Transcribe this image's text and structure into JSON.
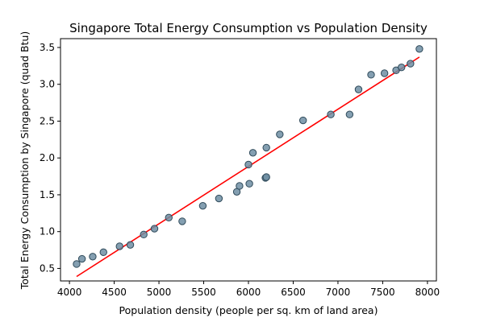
{
  "chart_data": {
    "type": "scatter",
    "title": "Singapore Total Energy Consumption vs Population Density",
    "xlabel": "Population density (people per sq. km of land area)",
    "ylabel": "Total Energy Consumption by Singapore (quad Btu)",
    "xlim": [
      3900,
      8100
    ],
    "ylim": [
      0.33,
      3.62
    ],
    "xticks": [
      4000,
      4500,
      5000,
      5500,
      6000,
      6500,
      7000,
      7500,
      8000
    ],
    "yticks": [
      0.5,
      1.0,
      1.5,
      2.0,
      2.5,
      3.0,
      3.5
    ],
    "xtick_labels": [
      "4000",
      "4500",
      "5000",
      "5500",
      "6000",
      "6500",
      "7000",
      "7500",
      "8000"
    ],
    "ytick_labels": [
      "0.5",
      "1.0",
      "1.5",
      "2.0",
      "2.5",
      "3.0",
      "3.5"
    ],
    "grid": false,
    "points": [
      {
        "x": 4080,
        "y": 0.56
      },
      {
        "x": 4140,
        "y": 0.63
      },
      {
        "x": 4260,
        "y": 0.66
      },
      {
        "x": 4380,
        "y": 0.72
      },
      {
        "x": 4560,
        "y": 0.8
      },
      {
        "x": 4680,
        "y": 0.82
      },
      {
        "x": 4830,
        "y": 0.96
      },
      {
        "x": 4950,
        "y": 1.04
      },
      {
        "x": 5110,
        "y": 1.19
      },
      {
        "x": 5260,
        "y": 1.14
      },
      {
        "x": 5490,
        "y": 1.35
      },
      {
        "x": 5670,
        "y": 1.45
      },
      {
        "x": 5870,
        "y": 1.54
      },
      {
        "x": 5900,
        "y": 1.62
      },
      {
        "x": 6010,
        "y": 1.65
      },
      {
        "x": 6000,
        "y": 1.91
      },
      {
        "x": 6050,
        "y": 2.07
      },
      {
        "x": 6190,
        "y": 1.73
      },
      {
        "x": 6200,
        "y": 1.74
      },
      {
        "x": 6200,
        "y": 2.14
      },
      {
        "x": 6350,
        "y": 2.32
      },
      {
        "x": 6610,
        "y": 2.51
      },
      {
        "x": 6920,
        "y": 2.59
      },
      {
        "x": 7130,
        "y": 2.59
      },
      {
        "x": 7230,
        "y": 2.93
      },
      {
        "x": 7370,
        "y": 3.13
      },
      {
        "x": 7520,
        "y": 3.15
      },
      {
        "x": 7650,
        "y": 3.19
      },
      {
        "x": 7710,
        "y": 3.23
      },
      {
        "x": 7810,
        "y": 3.28
      },
      {
        "x": 7910,
        "y": 3.48
      }
    ],
    "fit_line": {
      "color": "#ff0000",
      "points": [
        {
          "x": 4080,
          "y": 0.39
        },
        {
          "x": 7910,
          "y": 3.37
        }
      ]
    },
    "colors": {
      "point_fill": "#6f8ea3",
      "point_edge": "#2f4a5a",
      "fit_line": "#ff0000"
    }
  }
}
